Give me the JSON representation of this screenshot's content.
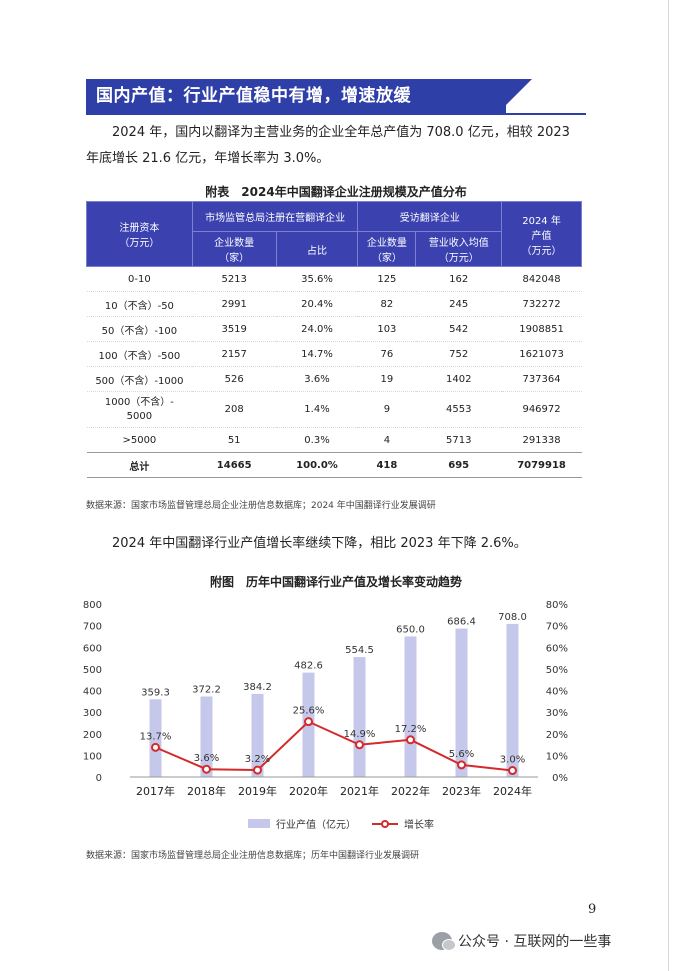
{
  "section": {
    "title": "国内产值：行业产值稳中有增，增速放缓"
  },
  "paragraph1": "2024 年，国内以翻译为主营业务的企业全年总产值为 708.0 亿元，相较 2023 年底增长 21.6 亿元，年增长率为 3.0%。",
  "table": {
    "title": "附表　2024年中国翻译企业注册规模及产值分布",
    "headers": {
      "capital": "注册资本\n（万元）",
      "group_market": "市场监管总局注册在营翻译企业",
      "group_survey": "受访翻译企业",
      "output": "2024 年\n产值\n（万元）",
      "count": "企业数量\n（家）",
      "share": "占比",
      "survey_count": "企业数量\n（家）",
      "avg_revenue": "营业收入均值\n（万元）"
    },
    "rows": [
      {
        "capital": "0-10",
        "count": "5213",
        "share": "35.6%",
        "survey_count": "125",
        "avg_revenue": "162",
        "output": "842048"
      },
      {
        "capital": "10（不含）-50",
        "count": "2991",
        "share": "20.4%",
        "survey_count": "82",
        "avg_revenue": "245",
        "output": "732272"
      },
      {
        "capital": "50（不含）-100",
        "count": "3519",
        "share": "24.0%",
        "survey_count": "103",
        "avg_revenue": "542",
        "output": "1908851"
      },
      {
        "capital": "100（不含）-500",
        "count": "2157",
        "share": "14.7%",
        "survey_count": "76",
        "avg_revenue": "752",
        "output": "1621073"
      },
      {
        "capital": "500（不含）-1000",
        "count": "526",
        "share": "3.6%",
        "survey_count": "19",
        "avg_revenue": "1402",
        "output": "737364"
      },
      {
        "capital": "1000（不含）-\n5000",
        "count": "208",
        "share": "1.4%",
        "survey_count": "9",
        "avg_revenue": "4553",
        "output": "946972"
      },
      {
        "capital": ">5000",
        "count": "51",
        "share": "0.3%",
        "survey_count": "4",
        "avg_revenue": "5713",
        "output": "291338"
      }
    ],
    "total": {
      "capital": "总计",
      "count": "14665",
      "share": "100.0%",
      "survey_count": "418",
      "avg_revenue": "695",
      "output": "7079918"
    }
  },
  "source1": "数据来源：国家市场监督管理总局企业注册信息数据库；2024 年中国翻译行业发展调研",
  "paragraph2": "2024 年中国翻译行业产值增长率继续下降，相比 2023 年下降 2.6%。",
  "chart_title": "附图　历年中国翻译行业产值及增长率变动趋势",
  "chart_data": {
    "type": "bar",
    "title": "附图　历年中国翻译行业产值及增长率变动趋势",
    "categories": [
      "2017年",
      "2018年",
      "2019年",
      "2020年",
      "2021年",
      "2022年",
      "2023年",
      "2024年"
    ],
    "series": [
      {
        "name": "行业产值（亿元）",
        "type": "bar",
        "axis": "left",
        "values": [
          359.3,
          372.2,
          384.2,
          482.6,
          554.5,
          650.0,
          686.4,
          708.0
        ],
        "labels": [
          "359.3",
          "372.2",
          "384.2",
          "482.6",
          "554.5",
          "650.0",
          "686.4",
          "708.0"
        ],
        "color": "#c5c8ea"
      },
      {
        "name": "增长率",
        "type": "line",
        "axis": "right",
        "values": [
          13.7,
          3.6,
          3.2,
          25.6,
          14.9,
          17.2,
          5.6,
          3.0
        ],
        "labels": [
          "13.7%",
          "3.6%",
          "3.2%",
          "25.6%",
          "14.9%",
          "17.2%",
          "5.6%",
          "3.0%"
        ],
        "color": "#d42a2a"
      }
    ],
    "y_left": {
      "min": 0,
      "max": 800,
      "ticks": [
        "0",
        "100",
        "200",
        "300",
        "400",
        "500",
        "600",
        "700",
        "800"
      ]
    },
    "y_right": {
      "min": 0,
      "max": 80,
      "ticks": [
        "0%",
        "10%",
        "20%",
        "30%",
        "40%",
        "50%",
        "60%",
        "70%",
        "80%"
      ]
    },
    "grid": false,
    "legend_position": "bottom"
  },
  "source2": "数据来源：国家市场监督管理总局企业注册信息数据库；历年中国翻译行业发展调研",
  "page_number": "9",
  "watermark_footer": {
    "icon": "wechat-icon",
    "text": "公众号 · 互联网的一些事"
  }
}
